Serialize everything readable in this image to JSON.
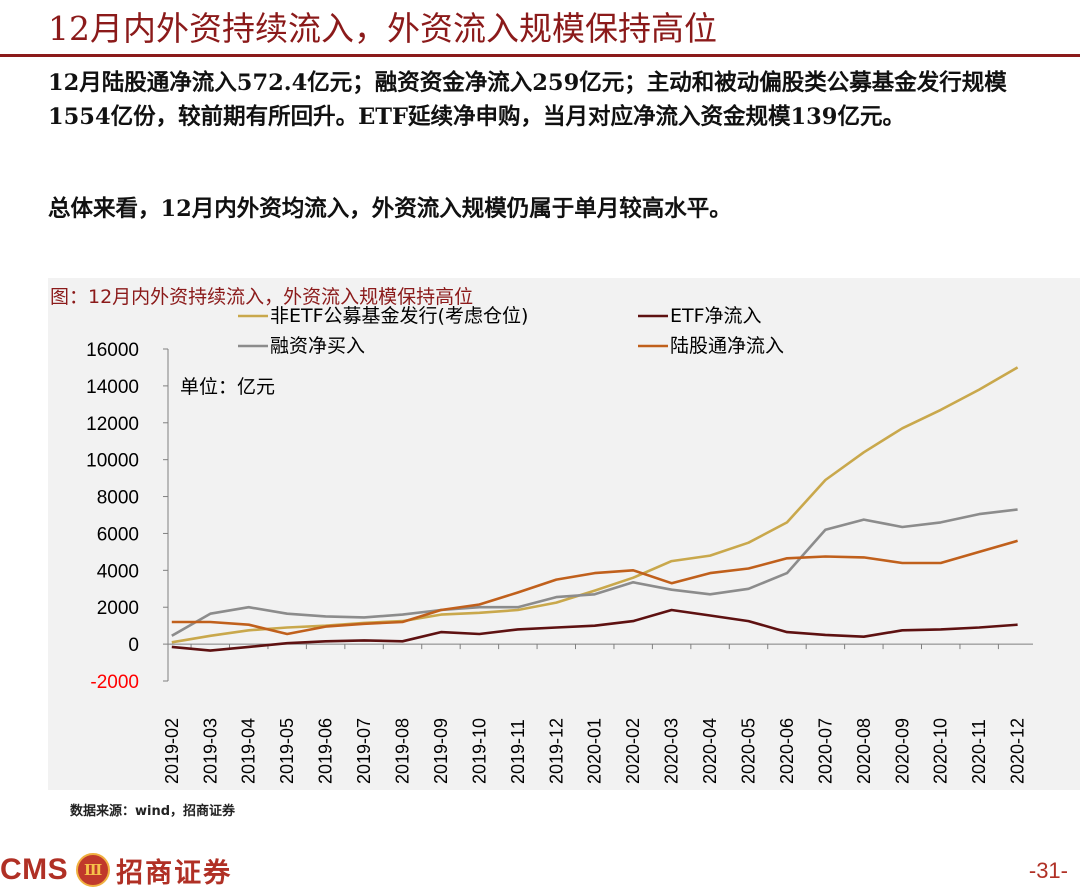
{
  "page": {
    "title": "12月内外资持续流入，外资流入规模保持高位",
    "bullet1": "12月陆股通净流入572.4亿元；融资资金净流入259亿元；主动和被动偏股类公募基金发行规模1554亿份，较前期有所回升。ETF延续净申购，当月对应净流入资金规模139亿元。",
    "bullet2": "总体来看，12月内外资均流入，外资流入规模仍属于单月较高水平。",
    "source": "数据来源：wind，招商证券",
    "logo_text": "CMS",
    "logo_emblem": "Ⅲ",
    "logo_cn": "招商证券",
    "page_number": "-31-"
  },
  "chart_data": {
    "type": "line",
    "title": "图：12月内外资持续流入，外资流入规模保持高位",
    "unit_label": "单位：亿元",
    "ylim": [
      -2000,
      16000
    ],
    "yticks": [
      -2000,
      0,
      2000,
      4000,
      6000,
      8000,
      10000,
      12000,
      14000,
      16000
    ],
    "negative_tick_color": "#ff0000",
    "categories": [
      "2019-02",
      "2019-03",
      "2019-04",
      "2019-05",
      "2019-06",
      "2019-07",
      "2019-08",
      "2019-09",
      "2019-10",
      "2019-11",
      "2019-12",
      "2020-01",
      "2020-02",
      "2020-03",
      "2020-04",
      "2020-05",
      "2020-06",
      "2020-07",
      "2020-08",
      "2020-09",
      "2020-10",
      "2020-11",
      "2020-12"
    ],
    "series": [
      {
        "name": "非ETF公募基金发行(考虑仓位)",
        "color": "#c9a84c",
        "values": [
          100,
          450,
          750,
          900,
          1000,
          1150,
          1250,
          1600,
          1700,
          1850,
          2250,
          2900,
          3600,
          4500,
          4800,
          5500,
          6600,
          8900,
          10400,
          11700,
          12700,
          13800,
          15000
        ]
      },
      {
        "name": "ETF净流入",
        "color": "#5e1111",
        "values": [
          -150,
          -350,
          -150,
          50,
          150,
          200,
          150,
          650,
          550,
          800,
          900,
          1000,
          1250,
          1850,
          1550,
          1250,
          650,
          500,
          400,
          750,
          800,
          900,
          1050
        ]
      },
      {
        "name": "融资净买入",
        "color": "#8c8c8c",
        "values": [
          450,
          1650,
          2000,
          1650,
          1500,
          1450,
          1600,
          1850,
          2000,
          2000,
          2550,
          2700,
          3350,
          2950,
          2700,
          3000,
          3850,
          6200,
          6750,
          6350,
          6600,
          7050,
          7300
        ]
      },
      {
        "name": "陆股通净流入",
        "color": "#c0601c",
        "values": [
          1200,
          1200,
          1050,
          550,
          950,
          1100,
          1200,
          1850,
          2150,
          2800,
          3500,
          3850,
          4000,
          3300,
          3850,
          4100,
          4650,
          4750,
          4700,
          4400,
          4400,
          5000,
          5600
        ]
      }
    ],
    "legend": [
      {
        "name": "非ETF公募基金发行(考虑仓位)",
        "color": "#c9a84c"
      },
      {
        "name": "ETF净流入",
        "color": "#5e1111"
      },
      {
        "name": "融资净买入",
        "color": "#8c8c8c"
      },
      {
        "name": "陆股通净流入",
        "color": "#c0601c"
      }
    ]
  }
}
